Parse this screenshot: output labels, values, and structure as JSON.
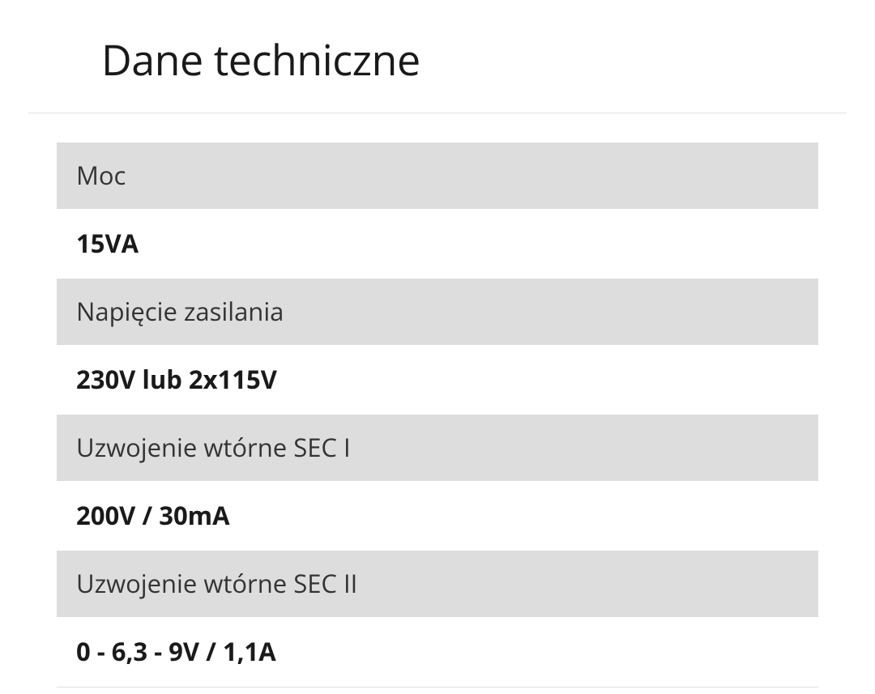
{
  "title": "Dane techniczne",
  "specs": [
    {
      "label": "Moc",
      "value": "15VA"
    },
    {
      "label": "Napięcie zasilania",
      "value": "230V lub 2x115V"
    },
    {
      "label": "Uzwojenie wtórne SEC I",
      "value": "200V / 30mA"
    },
    {
      "label": "Uzwojenie wtórne SEC II",
      "value": "0 - 6,3 - 9V / 1,1A"
    }
  ],
  "style": {
    "title_fontsize": 52,
    "label_fontsize": 31,
    "value_fontsize": 31,
    "label_bg_color": "#dddddd",
    "value_bg_color": "#ffffff",
    "title_color": "#1a1a1a",
    "label_color": "#333333",
    "value_color": "#1a1a1a",
    "divider_color": "#e0e0e0",
    "page_bg_color": "#ffffff"
  }
}
